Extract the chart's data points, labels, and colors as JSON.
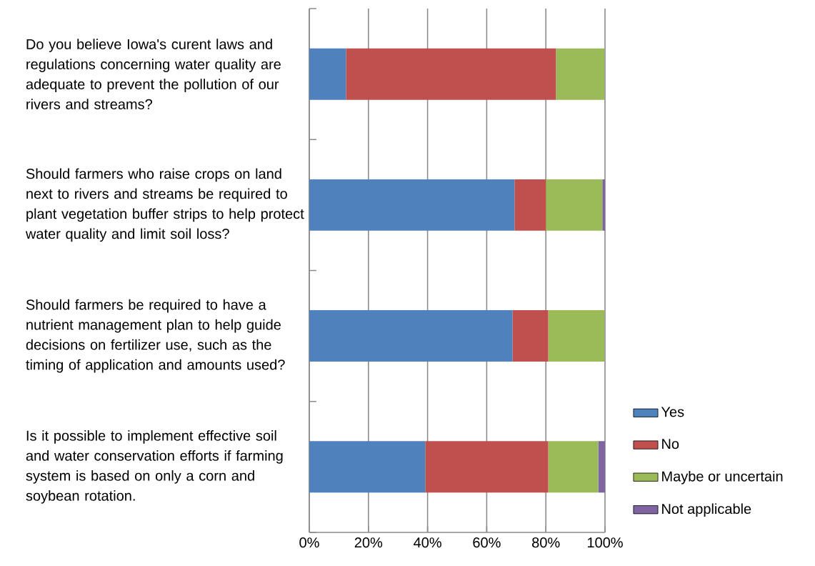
{
  "chart_data": {
    "type": "bar",
    "orientation": "horizontal",
    "stacked": true,
    "categories": [
      "Do you believe Iowa's curent laws and regulations concerning water quality are adequate to prevent the pollution of our rivers and streams?",
      "Should farmers who raise crops on land next to rivers and streams be required to plant vegetation buffer strips to help protect water quality and limit soil loss?",
      "Should farmers be required to have a nutrient management plan to help guide decisions on fertilizer use, such as the timing of application and amounts used?",
      "Is it possible to implement effective soil and water conservation efforts if farming system is based on only a corn and soybean rotation."
    ],
    "series": [
      {
        "name": "Yes",
        "color": "#4f81bd",
        "values": [
          12.4,
          69.4,
          68.7,
          39.2
        ]
      },
      {
        "name": "No",
        "color": "#c0504d",
        "values": [
          71,
          10.6,
          12.1,
          41.6
        ]
      },
      {
        "name": "Maybe or uncertain",
        "color": "#9bbb59",
        "values": [
          16.4,
          19.1,
          19,
          16.9
        ]
      },
      {
        "name": "Not applicable",
        "color": "#8064a2",
        "values": [
          null,
          0.9,
          null,
          2.3
        ]
      }
    ],
    "xlim": [
      0,
      100
    ],
    "xticks": [
      {
        "value": 0,
        "label": "0%"
      },
      {
        "value": 20,
        "label": "20%"
      },
      {
        "value": 40,
        "label": "40%"
      },
      {
        "value": 60,
        "label": "60%"
      },
      {
        "value": 80,
        "label": "80%"
      },
      {
        "value": 100,
        "label": "100%"
      }
    ],
    "grid": "x",
    "legend": "bottom right"
  }
}
